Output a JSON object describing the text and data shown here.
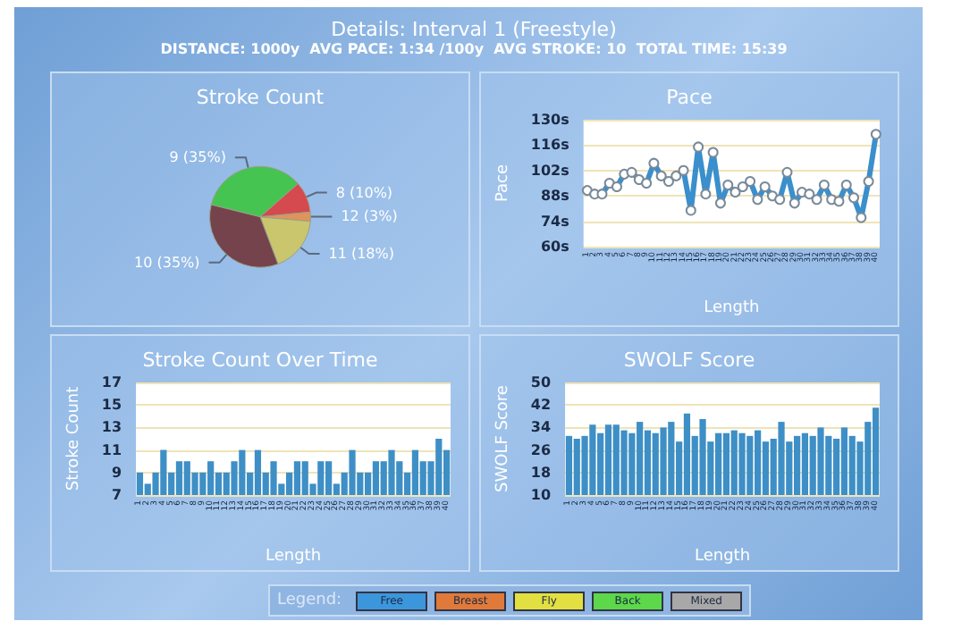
{
  "chart_data": [
    {
      "type": "other",
      "title": "Details: Interval 1 (Freestyle)",
      "subtitle": "DISTANCE: 1000y  AVG PACE: 1:34 /100y  AVG STROKE: 10  TOTAL TIME: 15:39"
    },
    {
      "type": "pie",
      "title": "Stroke Count",
      "categories": [
        "9",
        "8",
        "12",
        "11",
        "10"
      ],
      "values": [
        35,
        10,
        3,
        18,
        35
      ],
      "value_labels": [
        "9 (35%)",
        "8 (10%)",
        "12 (3%)",
        "11 (18%)",
        "10 (35%)"
      ],
      "colors": [
        "#46c452",
        "#d44a4e",
        "#e0945a",
        "#c9c66e",
        "#74434c"
      ]
    },
    {
      "type": "line",
      "title": "Pace",
      "xlabel": "Length",
      "ylabel": "Pace",
      "categories": [
        "1",
        "2",
        "3",
        "4",
        "5",
        "6",
        "7",
        "8",
        "9",
        "10",
        "11",
        "12",
        "13",
        "14",
        "15",
        "16",
        "17",
        "18",
        "19",
        "20",
        "21",
        "22",
        "23",
        "24",
        "25",
        "26",
        "27",
        "28",
        "29",
        "30",
        "31",
        "32",
        "33",
        "34",
        "35",
        "36",
        "37",
        "38",
        "39",
        "40"
      ],
      "values": [
        91,
        89,
        89,
        95,
        93,
        100,
        101,
        97,
        95,
        106,
        99,
        96,
        99,
        102,
        80,
        115,
        89,
        112,
        84,
        94,
        90,
        93,
        96,
        86,
        93,
        88,
        86,
        101,
        84,
        90,
        89,
        86,
        94,
        86,
        85,
        94,
        87,
        76,
        96,
        122
      ],
      "color": "#3a8fcc",
      "marker": "circle",
      "ylim": [
        60,
        130
      ],
      "yticks": [
        {
          "value": 60,
          "label": "60s"
        },
        {
          "value": 74,
          "label": "74s"
        },
        {
          "value": 88,
          "label": "88s"
        },
        {
          "value": 102,
          "label": "102s"
        },
        {
          "value": 116,
          "label": "116s"
        },
        {
          "value": 130,
          "label": "130s"
        }
      ],
      "grid": "y"
    },
    {
      "type": "bar",
      "title": "Stroke Count Over Time",
      "xlabel": "Length",
      "ylabel": "Stroke Count",
      "categories": [
        "1",
        "2",
        "3",
        "4",
        "5",
        "6",
        "7",
        "8",
        "9",
        "10",
        "11",
        "12",
        "13",
        "14",
        "15",
        "16",
        "17",
        "18",
        "19",
        "20",
        "21",
        "22",
        "23",
        "24",
        "25",
        "26",
        "27",
        "28",
        "29",
        "30",
        "31",
        "32",
        "33",
        "34",
        "35",
        "36",
        "37",
        "38",
        "39",
        "40"
      ],
      "values": [
        9,
        8,
        9,
        11,
        9,
        10,
        10,
        9,
        9,
        10,
        9,
        9,
        10,
        11,
        9,
        11,
        9,
        10,
        8,
        9,
        10,
        10,
        8,
        10,
        10,
        8,
        9,
        11,
        9,
        9,
        10,
        10,
        11,
        10,
        9,
        11,
        10,
        10,
        12,
        11
      ],
      "color": "#3e8fc6",
      "ylim": [
        7,
        17
      ],
      "yticks": [
        7,
        9,
        11,
        13,
        15,
        17
      ],
      "grid": "y"
    },
    {
      "type": "bar",
      "title": "SWOLF Score",
      "xlabel": "Length",
      "ylabel": "SWOLF Score",
      "categories": [
        "1",
        "2",
        "3",
        "4",
        "5",
        "6",
        "7",
        "8",
        "9",
        "10",
        "11",
        "12",
        "13",
        "14",
        "15",
        "16",
        "17",
        "18",
        "19",
        "20",
        "21",
        "22",
        "23",
        "24",
        "25",
        "26",
        "27",
        "28",
        "29",
        "30",
        "31",
        "32",
        "33",
        "34",
        "35",
        "36",
        "37",
        "38",
        "39",
        "40"
      ],
      "values": [
        31,
        30,
        31,
        35,
        32,
        35,
        35,
        33,
        32,
        36,
        33,
        32,
        34,
        36,
        29,
        39,
        31,
        37,
        29,
        32,
        32,
        33,
        32,
        31,
        33,
        29,
        30,
        36,
        29,
        31,
        32,
        31,
        34,
        31,
        30,
        34,
        31,
        29,
        36,
        41
      ],
      "color": "#3e8fc6",
      "ylim": [
        10,
        50
      ],
      "yticks": [
        10,
        18,
        26,
        34,
        42,
        50
      ],
      "grid": "y"
    },
    {
      "type": "other",
      "title": "Legend:",
      "categories": [
        "Free",
        "Breast",
        "Fly",
        "Back",
        "Mixed"
      ],
      "colors": [
        "#3c96dc",
        "#e07a3a",
        "#e2e040",
        "#5cd84a",
        "#a8a8a8"
      ]
    }
  ]
}
